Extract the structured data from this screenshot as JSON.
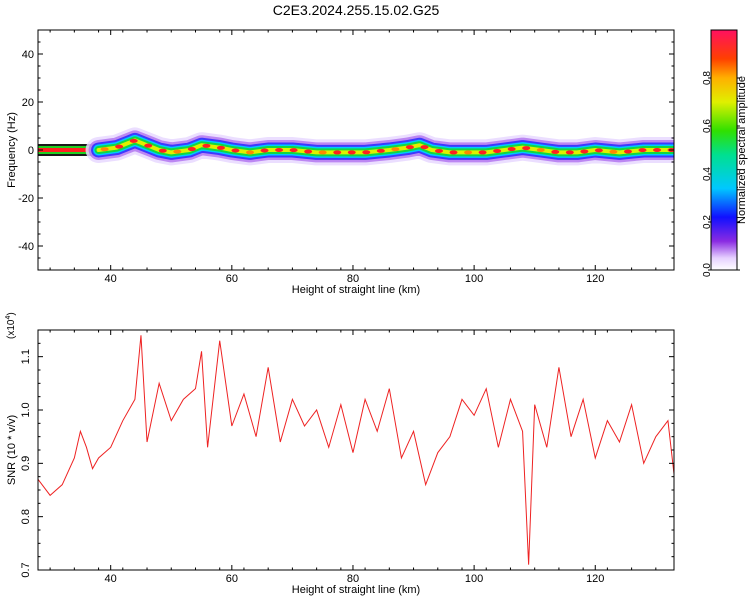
{
  "title": "C2E3.2024.255.15.02.G25",
  "chart_data": [
    {
      "type": "heatmap",
      "xlabel": "Height of straight line (km)",
      "ylabel": "Frequency (Hz)",
      "xlim": [
        28,
        133
      ],
      "ylim": [
        -50,
        50
      ],
      "xticks": [
        "40",
        "60",
        "80",
        "100",
        "120"
      ],
      "xtick_values": [
        40,
        60,
        80,
        100,
        120
      ],
      "yticks": [
        "40",
        "20",
        "0",
        "-20",
        "-40"
      ],
      "ytick_values": [
        40,
        20,
        0,
        -20,
        -40
      ],
      "colorbar": {
        "label": "Normalized spectral amplitude",
        "ticks": [
          "0.0",
          "0.2",
          "0.4",
          "0.6",
          "0.8"
        ],
        "tick_values": [
          0.0,
          0.2,
          0.4,
          0.6,
          0.8
        ],
        "range": [
          0,
          1
        ]
      },
      "ridge": {
        "description_x_start": 38,
        "flat_segment_x": [
          28,
          38
        ],
        "points_x": [
          38,
          41,
          43,
          44,
          46,
          48,
          50,
          53,
          55,
          58,
          60,
          63,
          66,
          70,
          74,
          78,
          82,
          86,
          89,
          91,
          93,
          96,
          99,
          102,
          105,
          108,
          111,
          114,
          117,
          120,
          124,
          128,
          133
        ],
        "points_y": [
          0,
          1,
          3,
          4,
          2,
          0,
          -1,
          0,
          2,
          1,
          0,
          -1,
          0,
          0,
          -1,
          -1,
          -1,
          0,
          1,
          2,
          0,
          -1,
          -1,
          -1,
          0,
          1,
          0,
          -1,
          -1,
          0,
          -1,
          0,
          0
        ]
      }
    },
    {
      "type": "line",
      "xlabel": "Height of straight line (km)",
      "ylabel": "SNR (10 * v/v)",
      "scale_label": "(x10",
      "scale_exp": "4",
      "xlim": [
        28,
        133
      ],
      "ylim": [
        0.7,
        1.15
      ],
      "xticks": [
        "40",
        "60",
        "80",
        "100",
        "120"
      ],
      "xtick_values": [
        40,
        60,
        80,
        100,
        120
      ],
      "yticks": [
        "0.7",
        "0.8",
        "0.9",
        "1.0",
        "1.1"
      ],
      "ytick_values": [
        0.7,
        0.8,
        0.9,
        1.0,
        1.1
      ],
      "series": [
        {
          "color": "#ee2222",
          "x": [
            28,
            30,
            32,
            34,
            35,
            36,
            37,
            38,
            40,
            42,
            44,
            45,
            46,
            48,
            50,
            52,
            54,
            55,
            56,
            58,
            60,
            62,
            64,
            66,
            68,
            70,
            72,
            74,
            76,
            78,
            80,
            82,
            84,
            86,
            88,
            90,
            92,
            94,
            96,
            98,
            100,
            102,
            104,
            106,
            108,
            109,
            110,
            112,
            114,
            116,
            118,
            120,
            122,
            124,
            126,
            128,
            130,
            132,
            133
          ],
          "y": [
            0.87,
            0.84,
            0.86,
            0.91,
            0.96,
            0.93,
            0.89,
            0.91,
            0.93,
            0.98,
            1.02,
            1.14,
            0.94,
            1.05,
            0.98,
            1.02,
            1.04,
            1.11,
            0.93,
            1.13,
            0.97,
            1.03,
            0.95,
            1.08,
            0.94,
            1.02,
            0.97,
            1.0,
            0.93,
            1.01,
            0.92,
            1.02,
            0.96,
            1.04,
            0.91,
            0.96,
            0.86,
            0.92,
            0.95,
            1.02,
            0.99,
            1.04,
            0.93,
            1.02,
            0.96,
            0.71,
            1.01,
            0.93,
            1.08,
            0.95,
            1.02,
            0.91,
            0.98,
            0.94,
            1.01,
            0.9,
            0.95,
            0.98,
            0.88
          ]
        }
      ]
    }
  ]
}
